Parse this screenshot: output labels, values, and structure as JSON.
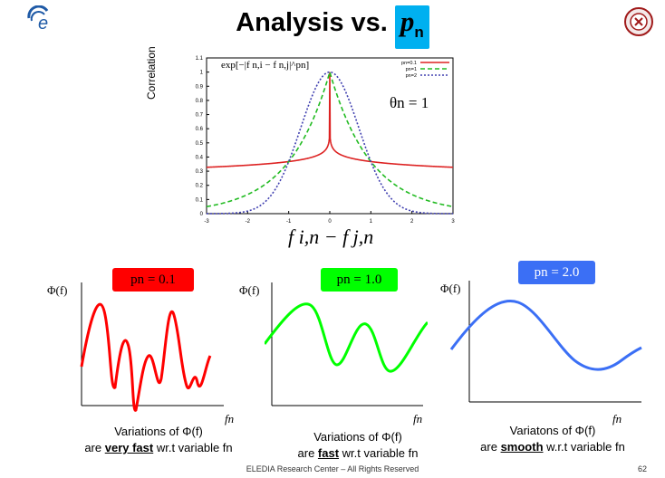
{
  "slide": {
    "title_prefix": "Analysis vs.",
    "title_p": "p",
    "title_sub": "n",
    "footer": "ELEDIA Research Center – All Rights Reserved",
    "page_number": "62",
    "accent_color": "#00b0f0"
  },
  "chart_data": [
    {
      "type": "line",
      "ylabel": "Correlation",
      "xlabel": "f i,n − f j,n",
      "annotation_formula": "exp[−|f n,i − f n,j|^pn]",
      "annotation_theta": "θn = 1",
      "xlim": [
        -3,
        3
      ],
      "ylim": [
        0,
        1.1
      ],
      "x_ticks": [
        "-3",
        "-2",
        "-1",
        "0",
        "1",
        "2",
        "3"
      ],
      "y_ticks": [
        "0",
        "0.1",
        "0.2",
        "0.3",
        "0.4",
        "0.5",
        "0.6",
        "0.7",
        "0.8",
        "0.9",
        "1",
        "1.1"
      ],
      "legend_position": "top-right",
      "series": [
        {
          "name": "pn=0.1",
          "color": "#dd2222",
          "style": "solid",
          "p": 0.1,
          "x": [
            -3,
            -2,
            -1,
            -0.5,
            -0.1,
            -0.01,
            0,
            0.01,
            0.1,
            0.5,
            1,
            2,
            3
          ],
          "y": [
            0.33,
            0.34,
            0.37,
            0.39,
            0.45,
            0.53,
            1.0,
            0.53,
            0.45,
            0.39,
            0.37,
            0.34,
            0.33
          ]
        },
        {
          "name": "pn=1",
          "color": "#22bb22",
          "style": "dashed",
          "p": 1,
          "x": [
            -3,
            -2,
            -1,
            -0.5,
            0,
            0.5,
            1,
            2,
            3
          ],
          "y": [
            0.05,
            0.14,
            0.37,
            0.61,
            1.0,
            0.61,
            0.37,
            0.14,
            0.05
          ]
        },
        {
          "name": "pn=2",
          "color": "#4040b0",
          "style": "dotted",
          "p": 2,
          "x": [
            -3,
            -2,
            -1,
            -0.5,
            0,
            0.5,
            1,
            2,
            3
          ],
          "y": [
            0.0,
            0.02,
            0.37,
            0.78,
            1.0,
            0.78,
            0.37,
            0.02,
            0.0
          ]
        }
      ]
    }
  ],
  "panels": [
    {
      "pill": "pn = 0.1",
      "pill_color": "#ff0000",
      "pill_text_color": "#000000",
      "yaxis": "Φ(f)",
      "xaxis": "fn",
      "curve_color": "#ff0000",
      "cap_line1": "Variations of Φ(f)",
      "cap_pre": "are ",
      "cap_bold": "very fast",
      "cap_post": " wr.t variable fn"
    },
    {
      "pill": "pn = 1.0",
      "pill_color": "#00ff00",
      "pill_text_color": "#000000",
      "yaxis": "Φ(f)",
      "xaxis": "fn",
      "curve_color": "#00ff00",
      "cap_line1": "Variations of Φ(f)",
      "cap_pre": "are ",
      "cap_bold": "fast",
      "cap_post": " wr.t variable fn"
    },
    {
      "pill": "pn = 2.0",
      "pill_color": "#3b6ff5",
      "pill_text_color": "#ffffff",
      "yaxis": "Φ(f)",
      "xaxis": "fn",
      "curve_color": "#3b6ff5",
      "cap_line1": "Variatons of Φ(f)",
      "cap_pre": "are ",
      "cap_bold": "smooth",
      "cap_post": " w.r.t variable fn"
    }
  ]
}
